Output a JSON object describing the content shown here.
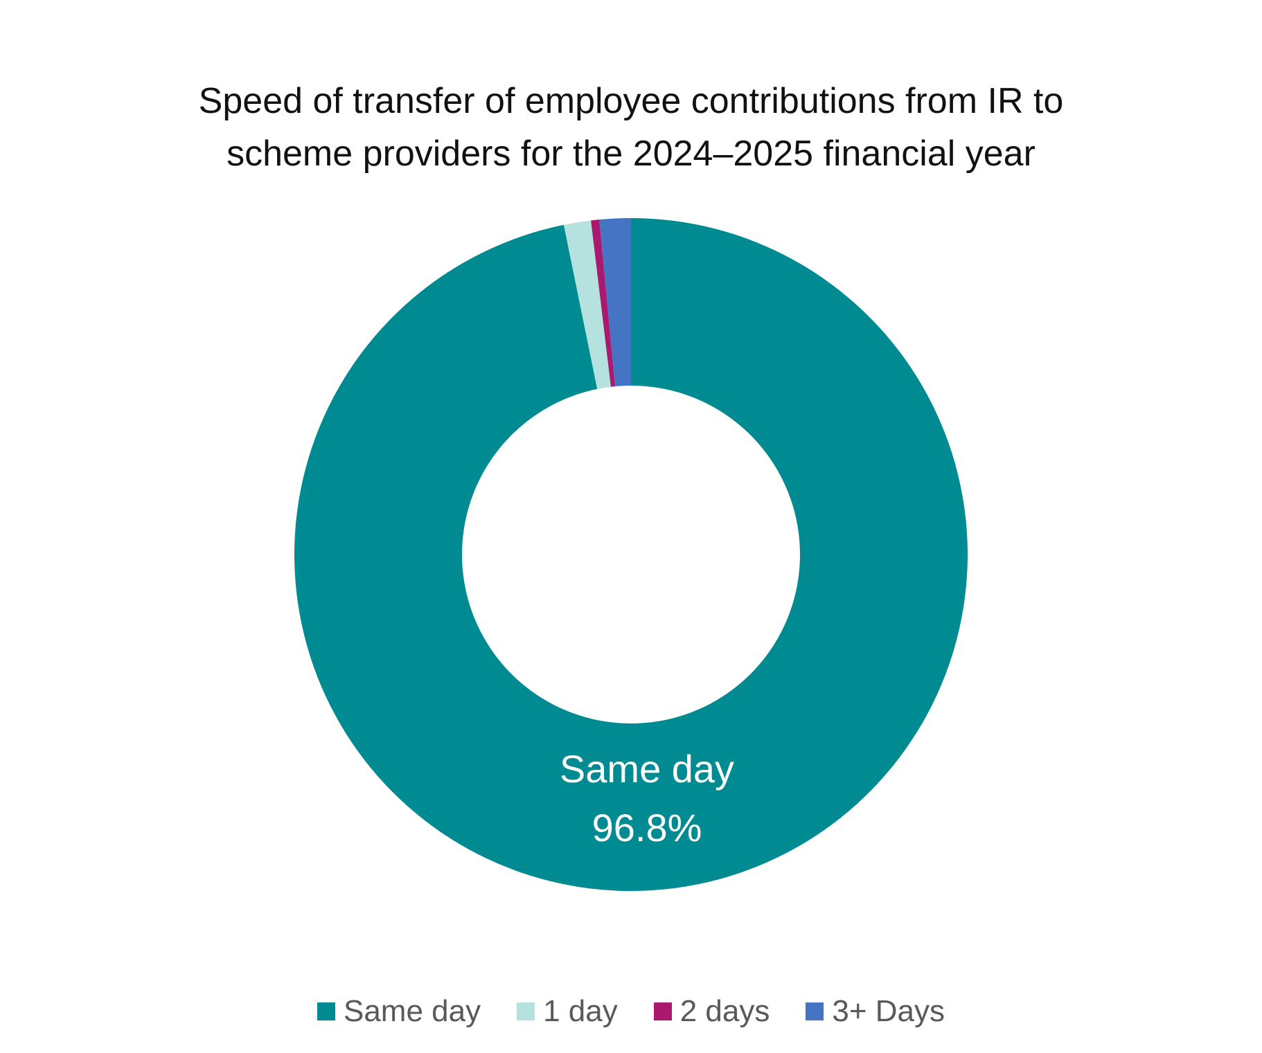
{
  "chart_data": {
    "type": "pie",
    "title": "Speed of transfer of employee contributions from IR to scheme providers for the 2024–2025 financial year",
    "title_lines": [
      "Speed of transfer of employee contributions from IR to",
      "scheme providers for the 2024–2025 financial year"
    ],
    "donut": true,
    "legend_position": "bottom",
    "categories": [
      "Same day",
      "1 day",
      "2 days",
      "3+ Days"
    ],
    "values": [
      96.8,
      1.3,
      0.4,
      1.5
    ],
    "colors": [
      "#008b92",
      "#b5e1df",
      "#a8196f",
      "#4574c5"
    ],
    "data_labels": [
      {
        "category": "Same day",
        "text": "Same day",
        "value_text": "96.8%",
        "color": "#ffffff"
      }
    ]
  }
}
